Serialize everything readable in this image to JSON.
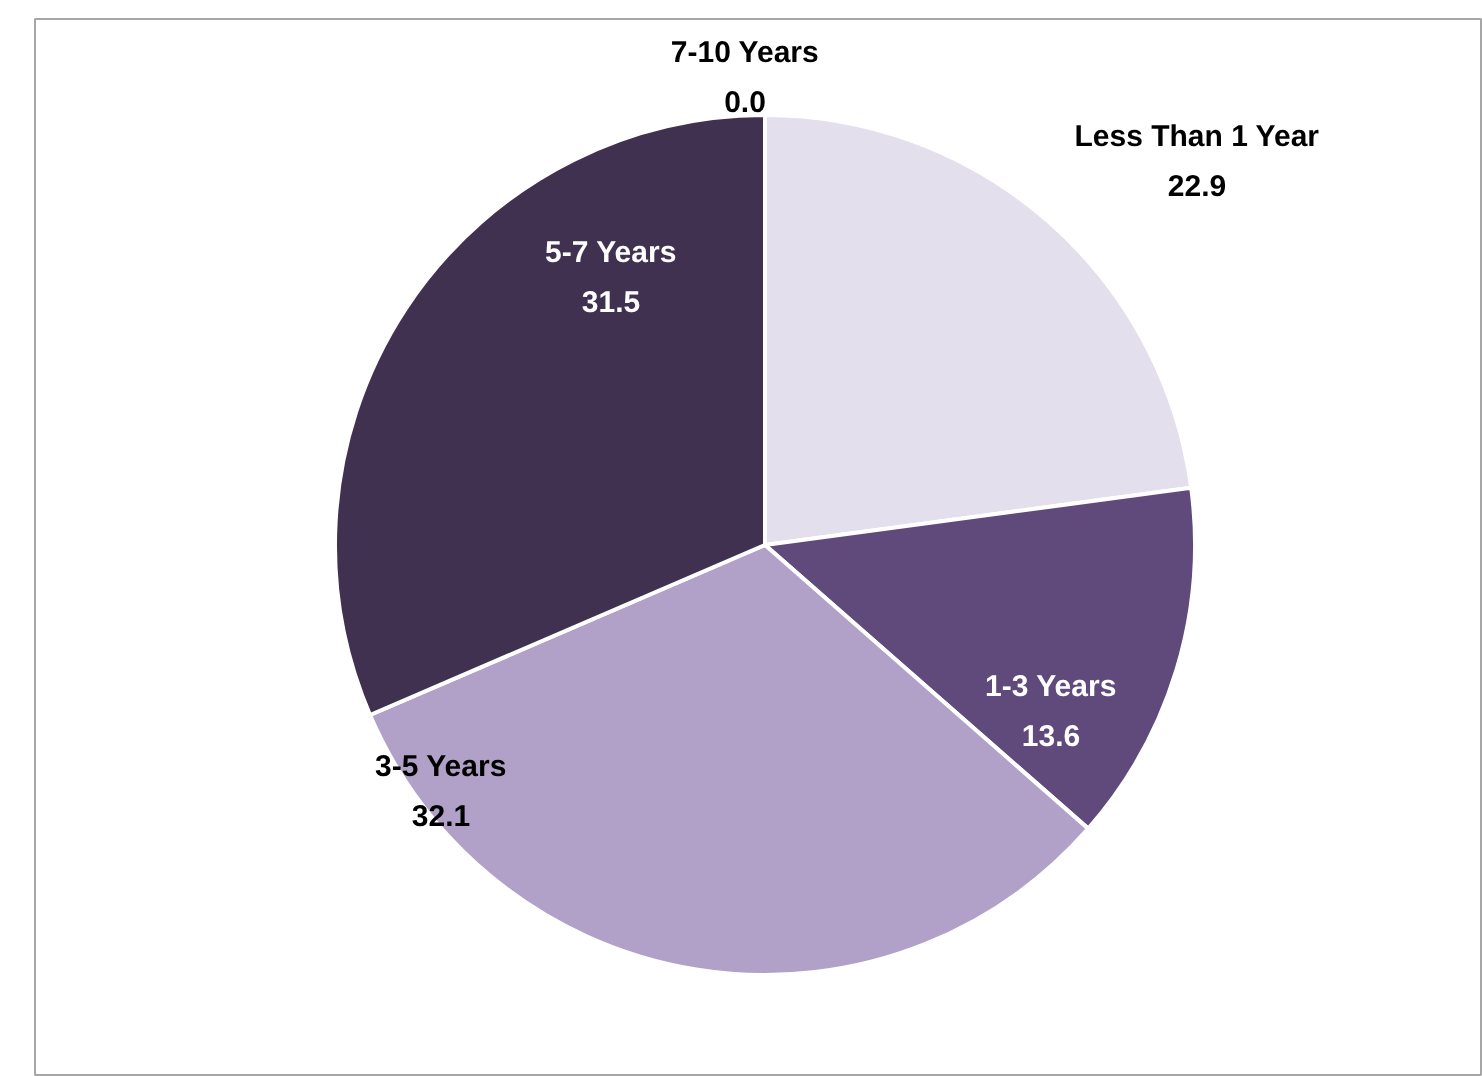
{
  "chart_data": {
    "type": "pie",
    "categories": [
      "Less Than 1 Year",
      "1-3 Years",
      "3-5 Years",
      "5-7 Years",
      "7-10 Years"
    ],
    "values": [
      22.9,
      13.6,
      32.1,
      31.5,
      0.0
    ],
    "colors": [
      "#e4dfec",
      "#604a7b",
      "#b1a0c7",
      "#403151",
      "#8064a2"
    ],
    "value_labels": [
      "22.9",
      "13.6",
      "32.1",
      "31.5",
      "0.0"
    ]
  }
}
